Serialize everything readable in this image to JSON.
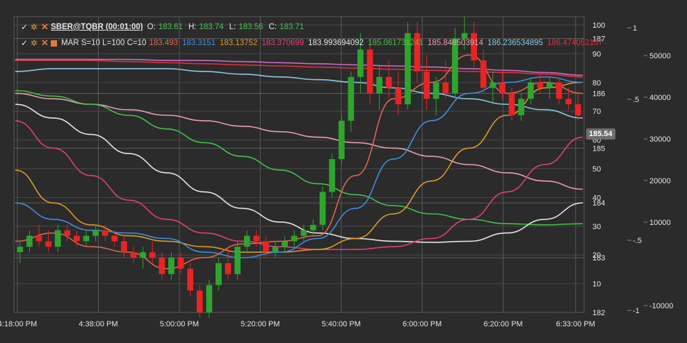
{
  "header": {
    "instrument": "SBER@TQBR (00:01:00)",
    "ohlc": [
      {
        "label": "O:",
        "value": "183.61"
      },
      {
        "label": "H:",
        "value": "183.74"
      },
      {
        "label": "L:",
        "value": "183.56"
      },
      {
        "label": "C:",
        "value": "183.71"
      }
    ],
    "indicator": "MAR S=10 L=100 C=10",
    "indicator_values": [
      {
        "value": "183.493",
        "color": "#e0654f"
      },
      {
        "value": "183.3151",
        "color": "#3f8fe0"
      },
      {
        "value": "183.13752",
        "color": "#e09a2a"
      },
      {
        "value": "183.370699",
        "color": "#e0407a"
      },
      {
        "value": "183.993694092",
        "color": "#e6e6e6"
      },
      {
        "value": "185.061731241",
        "color": "#44c04a"
      },
      {
        "value": "185.848503914",
        "color": "#e8a0b0"
      },
      {
        "value": "186.236534895",
        "color": "#8cc8e8"
      },
      {
        "value": "186.474052107",
        "color": "#e0303a"
      }
    ]
  },
  "last_price": "185.54",
  "colors": {
    "background": "#2b2b2b",
    "grid": "#5a5a5a",
    "up": "#2fa52f",
    "down": "#e82424",
    "text": "#e6e6e6"
  },
  "chart_data": {
    "type": "line",
    "x_ticks": [
      "4:18:00 PM",
      "4:38:00 PM",
      "5:00:00 PM",
      "5:20:00 PM",
      "5:40:00 PM",
      "6:00:00 PM",
      "6:20:00 PM",
      "6:33:00 PM"
    ],
    "price_axis": {
      "ticks": [
        187,
        186,
        185,
        184,
        183,
        182
      ],
      "range": [
        182,
        187.4
      ]
    },
    "percent_axis": {
      "ticks": [
        100,
        90,
        80,
        70,
        60,
        50,
        40,
        30,
        20,
        10
      ],
      "range": [
        0,
        100
      ]
    },
    "volume_axis": {
      "ticks": [
        50000,
        40000,
        30000,
        20000,
        10000,
        -10000
      ],
      "range": [
        -10000,
        50000
      ]
    },
    "osc_axis": {
      "ticks": [
        "1",
        ".5",
        "-.5",
        "-1"
      ],
      "range": [
        -1,
        1
      ]
    },
    "candles": [
      {
        "o": 183.1,
        "h": 183.3,
        "l": 182.9,
        "c": 183.2
      },
      {
        "o": 183.2,
        "h": 183.5,
        "l": 183.1,
        "c": 183.4
      },
      {
        "o": 183.4,
        "h": 183.6,
        "l": 183.2,
        "c": 183.3
      },
      {
        "o": 183.3,
        "h": 183.5,
        "l": 183.1,
        "c": 183.2
      },
      {
        "o": 183.2,
        "h": 183.6,
        "l": 183.1,
        "c": 183.5
      },
      {
        "o": 183.5,
        "h": 183.6,
        "l": 183.3,
        "c": 183.4
      },
      {
        "o": 183.4,
        "h": 183.5,
        "l": 183.2,
        "c": 183.3
      },
      {
        "o": 183.3,
        "h": 183.5,
        "l": 183.2,
        "c": 183.4
      },
      {
        "o": 183.4,
        "h": 183.6,
        "l": 183.3,
        "c": 183.5
      },
      {
        "o": 183.5,
        "h": 183.6,
        "l": 183.3,
        "c": 183.4
      },
      {
        "o": 183.4,
        "h": 183.5,
        "l": 183.2,
        "c": 183.3
      },
      {
        "o": 183.3,
        "h": 183.4,
        "l": 183.0,
        "c": 183.1
      },
      {
        "o": 183.1,
        "h": 183.2,
        "l": 182.9,
        "c": 183.0
      },
      {
        "o": 183.0,
        "h": 183.2,
        "l": 182.8,
        "c": 183.1
      },
      {
        "o": 183.1,
        "h": 183.3,
        "l": 182.9,
        "c": 183.0
      },
      {
        "o": 183.0,
        "h": 183.1,
        "l": 182.6,
        "c": 182.7
      },
      {
        "o": 182.7,
        "h": 183.1,
        "l": 182.6,
        "c": 183.0
      },
      {
        "o": 183.0,
        "h": 183.1,
        "l": 182.7,
        "c": 182.8
      },
      {
        "o": 182.8,
        "h": 182.9,
        "l": 182.3,
        "c": 182.4
      },
      {
        "o": 182.4,
        "h": 182.5,
        "l": 181.9,
        "c": 182.0
      },
      {
        "o": 182.0,
        "h": 182.6,
        "l": 181.9,
        "c": 182.5
      },
      {
        "o": 182.5,
        "h": 183.0,
        "l": 182.4,
        "c": 182.9
      },
      {
        "o": 182.9,
        "h": 183.2,
        "l": 182.6,
        "c": 182.7
      },
      {
        "o": 182.7,
        "h": 183.3,
        "l": 182.6,
        "c": 183.2
      },
      {
        "o": 183.2,
        "h": 183.5,
        "l": 183.1,
        "c": 183.4
      },
      {
        "o": 183.4,
        "h": 183.5,
        "l": 183.2,
        "c": 183.3
      },
      {
        "o": 183.3,
        "h": 183.4,
        "l": 183.0,
        "c": 183.1
      },
      {
        "o": 183.1,
        "h": 183.3,
        "l": 183.0,
        "c": 183.2
      },
      {
        "o": 183.2,
        "h": 183.4,
        "l": 183.1,
        "c": 183.3
      },
      {
        "o": 183.3,
        "h": 183.5,
        "l": 183.2,
        "c": 183.4
      },
      {
        "o": 183.4,
        "h": 183.6,
        "l": 183.3,
        "c": 183.5
      },
      {
        "o": 183.5,
        "h": 183.7,
        "l": 183.4,
        "c": 183.6
      },
      {
        "o": 183.6,
        "h": 184.3,
        "l": 183.5,
        "c": 184.2
      },
      {
        "o": 184.2,
        "h": 184.9,
        "l": 184.1,
        "c": 184.8
      },
      {
        "o": 184.8,
        "h": 185.6,
        "l": 184.7,
        "c": 185.5
      },
      {
        "o": 185.5,
        "h": 186.4,
        "l": 185.3,
        "c": 186.3
      },
      {
        "o": 186.3,
        "h": 187.1,
        "l": 186.0,
        "c": 186.8
      },
      {
        "o": 186.8,
        "h": 187.0,
        "l": 185.8,
        "c": 186.0
      },
      {
        "o": 186.0,
        "h": 186.5,
        "l": 185.7,
        "c": 186.3
      },
      {
        "o": 186.3,
        "h": 186.6,
        "l": 185.9,
        "c": 186.1
      },
      {
        "o": 186.1,
        "h": 186.4,
        "l": 185.6,
        "c": 185.8
      },
      {
        "o": 185.8,
        "h": 187.3,
        "l": 185.7,
        "c": 187.1
      },
      {
        "o": 187.1,
        "h": 187.3,
        "l": 186.2,
        "c": 186.4
      },
      {
        "o": 186.4,
        "h": 186.7,
        "l": 185.7,
        "c": 185.9
      },
      {
        "o": 185.9,
        "h": 186.3,
        "l": 185.6,
        "c": 186.2
      },
      {
        "o": 186.2,
        "h": 186.6,
        "l": 185.9,
        "c": 186.0
      },
      {
        "o": 186.0,
        "h": 187.2,
        "l": 185.9,
        "c": 187.0
      },
      {
        "o": 187.0,
        "h": 187.4,
        "l": 186.8,
        "c": 187.1
      },
      {
        "o": 187.1,
        "h": 187.3,
        "l": 186.4,
        "c": 186.6
      },
      {
        "o": 186.6,
        "h": 186.8,
        "l": 186.0,
        "c": 186.1
      },
      {
        "o": 186.1,
        "h": 186.4,
        "l": 185.8,
        "c": 186.2
      },
      {
        "o": 186.2,
        "h": 186.4,
        "l": 185.9,
        "c": 186.0
      },
      {
        "o": 186.0,
        "h": 186.1,
        "l": 185.5,
        "c": 185.6
      },
      {
        "o": 185.6,
        "h": 186.0,
        "l": 185.5,
        "c": 185.9
      },
      {
        "o": 185.9,
        "h": 186.3,
        "l": 185.8,
        "c": 186.2
      },
      {
        "o": 186.2,
        "h": 186.4,
        "l": 186.0,
        "c": 186.1
      },
      {
        "o": 186.1,
        "h": 186.3,
        "l": 185.9,
        "c": 186.2
      },
      {
        "o": 186.2,
        "h": 186.3,
        "l": 185.8,
        "c": 185.9
      },
      {
        "o": 185.9,
        "h": 186.1,
        "l": 185.7,
        "c": 185.8
      },
      {
        "o": 185.8,
        "h": 186.0,
        "l": 185.5,
        "c": 185.6
      }
    ],
    "series": [
      {
        "color": "#e8a0b0",
        "values": [
          186.0,
          185.9,
          185.8,
          185.7,
          185.6,
          185.5,
          185.4,
          185.3,
          185.2,
          185.1,
          185.0,
          184.85,
          184.7,
          184.55,
          184.4,
          184.25
        ]
      },
      {
        "color": "#8cc8e8",
        "values": [
          186.4,
          186.45,
          186.45,
          186.45,
          186.45,
          186.4,
          186.35,
          186.3,
          186.25,
          186.2,
          186.1,
          186.0,
          185.9,
          185.8,
          185.7,
          185.55
        ]
      },
      {
        "color": "#e0303a",
        "values": [
          186.6,
          186.6,
          186.6,
          186.58,
          186.56,
          186.54,
          186.52,
          186.5,
          186.48,
          186.46,
          186.44,
          186.42,
          186.4,
          186.38,
          186.35,
          186.3
        ]
      },
      {
        "color": "#c86ec8",
        "values": [
          186.62,
          186.62,
          186.62,
          186.62,
          186.6,
          186.6,
          186.58,
          186.56,
          186.54,
          186.52,
          186.5,
          186.48,
          186.45,
          186.42,
          186.38,
          186.33
        ]
      },
      {
        "color": "#44c04a",
        "values": [
          186.05,
          185.95,
          185.8,
          185.6,
          185.35,
          185.1,
          184.85,
          184.6,
          184.35,
          184.15,
          183.95,
          183.8,
          183.7,
          183.62,
          183.6,
          183.62
        ]
      },
      {
        "color": "#e6e6e6",
        "values": [
          185.8,
          185.55,
          185.25,
          184.9,
          184.55,
          184.2,
          183.9,
          183.65,
          183.45,
          183.35,
          183.3,
          183.28,
          183.3,
          183.45,
          183.7,
          184.0
        ]
      },
      {
        "color": "#e0407a",
        "values": [
          185.5,
          185.0,
          184.5,
          184.05,
          183.7,
          183.45,
          183.3,
          183.2,
          183.15,
          183.15,
          183.2,
          183.35,
          183.7,
          184.2,
          184.7,
          185.2
        ]
      },
      {
        "color": "#e09a2a",
        "values": [
          184.6,
          184.0,
          183.6,
          183.4,
          183.3,
          183.2,
          183.1,
          183.1,
          183.15,
          183.35,
          183.8,
          184.4,
          185.0,
          185.6,
          186.1,
          186.2
        ]
      },
      {
        "color": "#3f8fe0",
        "values": [
          184.0,
          183.7,
          183.5,
          183.45,
          183.35,
          183.1,
          183.0,
          183.1,
          183.35,
          183.9,
          184.8,
          185.5,
          186.0,
          186.2,
          186.3,
          186.2
        ]
      },
      {
        "color": "#e0654f",
        "values": [
          183.3,
          183.45,
          183.2,
          183.1,
          182.8,
          183.0,
          183.25,
          183.3,
          183.4,
          184.5,
          185.9,
          186.2,
          186.7,
          186.0,
          186.2,
          186.0
        ]
      }
    ]
  }
}
